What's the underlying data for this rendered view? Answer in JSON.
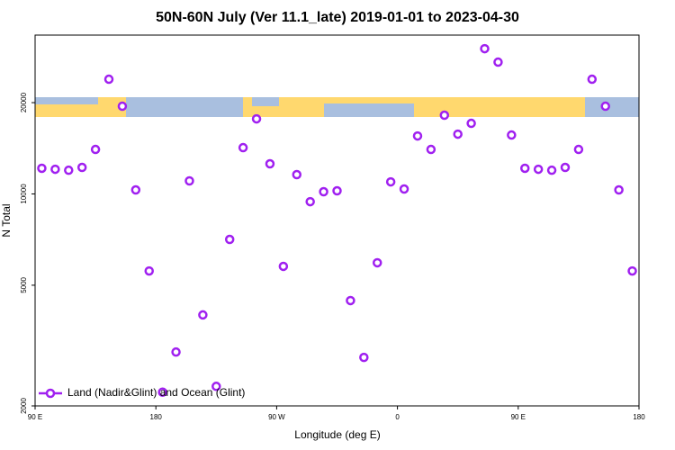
{
  "chart_data": {
    "type": "scatter",
    "title": "50N-60N July (Ver 11.1_late)   2019-01-01 to 2023-04-30",
    "x_label": "Longitude (deg E)",
    "y_label": "N Total",
    "series": [
      {
        "name": "Land (Nadir&Glint) and Ocean (Glint)",
        "color": "#a020f0",
        "x": [
          95,
          105,
          115,
          125,
          135,
          145,
          155,
          165,
          175,
          185,
          195,
          205,
          215,
          225,
          235,
          245,
          255,
          265,
          275,
          285,
          295,
          305,
          315,
          325,
          335,
          345,
          355,
          365,
          375,
          385,
          395,
          405,
          415,
          425,
          435,
          445,
          455,
          465,
          475,
          485,
          495,
          505,
          515,
          525,
          535
        ],
        "values": [
          12150,
          12060,
          11970,
          12230,
          14020,
          23890,
          19460,
          10310,
          5570,
          2220,
          3010,
          11040,
          3990,
          2320,
          7080,
          14210,
          17680,
          12570,
          5770,
          11580,
          9430,
          10170,
          10240,
          4450,
          2890,
          5930,
          10960,
          10380,
          15530,
          14020,
          18180,
          15740,
          17090,
          30130,
          27200,
          15640,
          12150,
          12060,
          11970,
          12230,
          14020,
          23890,
          19460,
          10310,
          5570
        ]
      }
    ],
    "xlim": [
      90,
      540
    ],
    "xticks": [
      {
        "value": 90,
        "label": "90 E"
      },
      {
        "value": 180,
        "label": "180"
      },
      {
        "value": 270,
        "label": "90 W"
      },
      {
        "value": 360,
        "label": "0"
      },
      {
        "value": 450,
        "label": "90 E"
      },
      {
        "value": 540,
        "label": "180"
      }
    ],
    "ylim": [
      2000,
      33400
    ],
    "yticks": [
      2000,
      5000,
      10000,
      20000
    ],
    "log_y": true,
    "legend": "lower-left"
  }
}
